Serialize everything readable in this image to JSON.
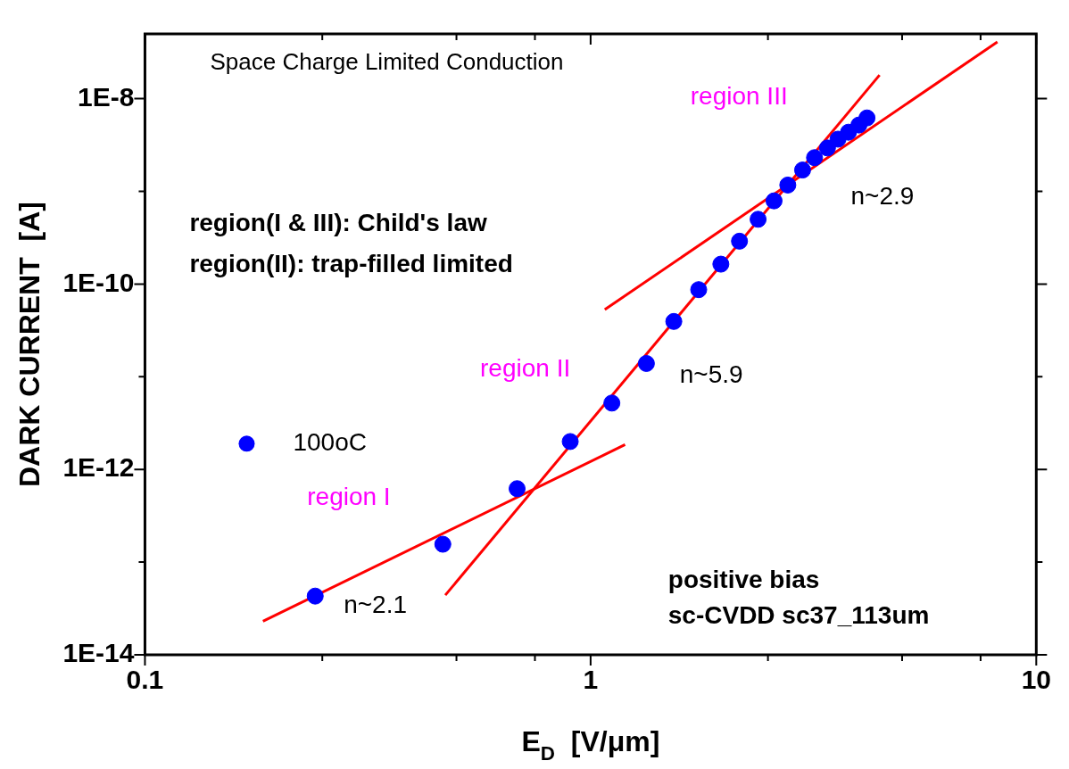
{
  "chart_data": {
    "type": "scatter",
    "title": "Space Charge Limited Conduction",
    "xlabel": "E$_{D}$  [V/μm]",
    "ylabel": "DARK CURRENT  [A]",
    "log": "xy",
    "marker": "circle",
    "legend": "left",
    "xlim": [
      0.1,
      10
    ],
    "ylim": [
      1e-14,
      5e-08
    ],
    "xticks": [
      0.1,
      {
        "value": 0.25,
        "label": null
      },
      {
        "value": 0.5,
        "label": null
      },
      {
        "value": 0.75,
        "label": null
      },
      1,
      {
        "value": 2.5,
        "label": null
      },
      {
        "value": 5,
        "label": null
      },
      {
        "value": 7.5,
        "label": null
      },
      10
    ],
    "yticks": [
      {
        "value": 1e-14,
        "label": "1E-14"
      },
      {
        "value": 1e-13,
        "label": null
      },
      {
        "value": 1e-12,
        "label": "1E-12"
      },
      {
        "value": 1e-11,
        "label": null
      },
      {
        "value": 1e-10,
        "label": "1E-10"
      },
      {
        "value": 1e-09,
        "label": null
      },
      {
        "value": 1e-08,
        "label": "1E-8"
      }
    ],
    "series": [
      {
        "name": "100oC",
        "color": "#0000ff",
        "x": [
          0.241,
          0.466,
          0.684,
          0.9,
          1.116,
          1.334,
          1.537,
          1.748,
          1.96,
          2.158,
          2.376,
          2.58,
          2.77,
          2.99,
          3.18,
          3.4,
          3.59,
          3.79,
          4.0,
          4.17
        ],
        "values": [
          4.3e-14,
          1.56e-13,
          6.2e-13,
          2e-12,
          5.2e-12,
          1.39e-11,
          3.95e-11,
          8.7e-11,
          1.64e-10,
          2.9e-10,
          5e-10,
          7.9e-10,
          1.17e-09,
          1.7e-09,
          2.31e-09,
          2.94e-09,
          3.66e-09,
          4.35e-09,
          5.2e-09,
          6.2e-09
        ]
      },
      {
        "type": "line",
        "color": "#ff0000",
        "marker": "none",
        "x": [
          0.184,
          1.195
        ],
        "values": [
          2.3e-14,
          1.85e-12
        ]
      },
      {
        "type": "line",
        "color": "#ff0000",
        "marker": "none",
        "x": [
          0.472,
          4.45
        ],
        "values": [
          4.4e-14,
          1.8e-08
        ]
      },
      {
        "type": "line",
        "color": "#ff0000",
        "marker": "none",
        "x": [
          1.076,
          8.18
        ],
        "values": [
          5.3e-11,
          4.1e-08
        ]
      }
    ],
    "annotations": [
      "region III",
      "n~2.9",
      "region(I & III): Child's law",
      "region(II): trap-filled limited",
      "region II",
      "n~5.9",
      "region I",
      "n~2.1",
      "positive bias",
      "sc-CVDD sc37_113um"
    ]
  }
}
